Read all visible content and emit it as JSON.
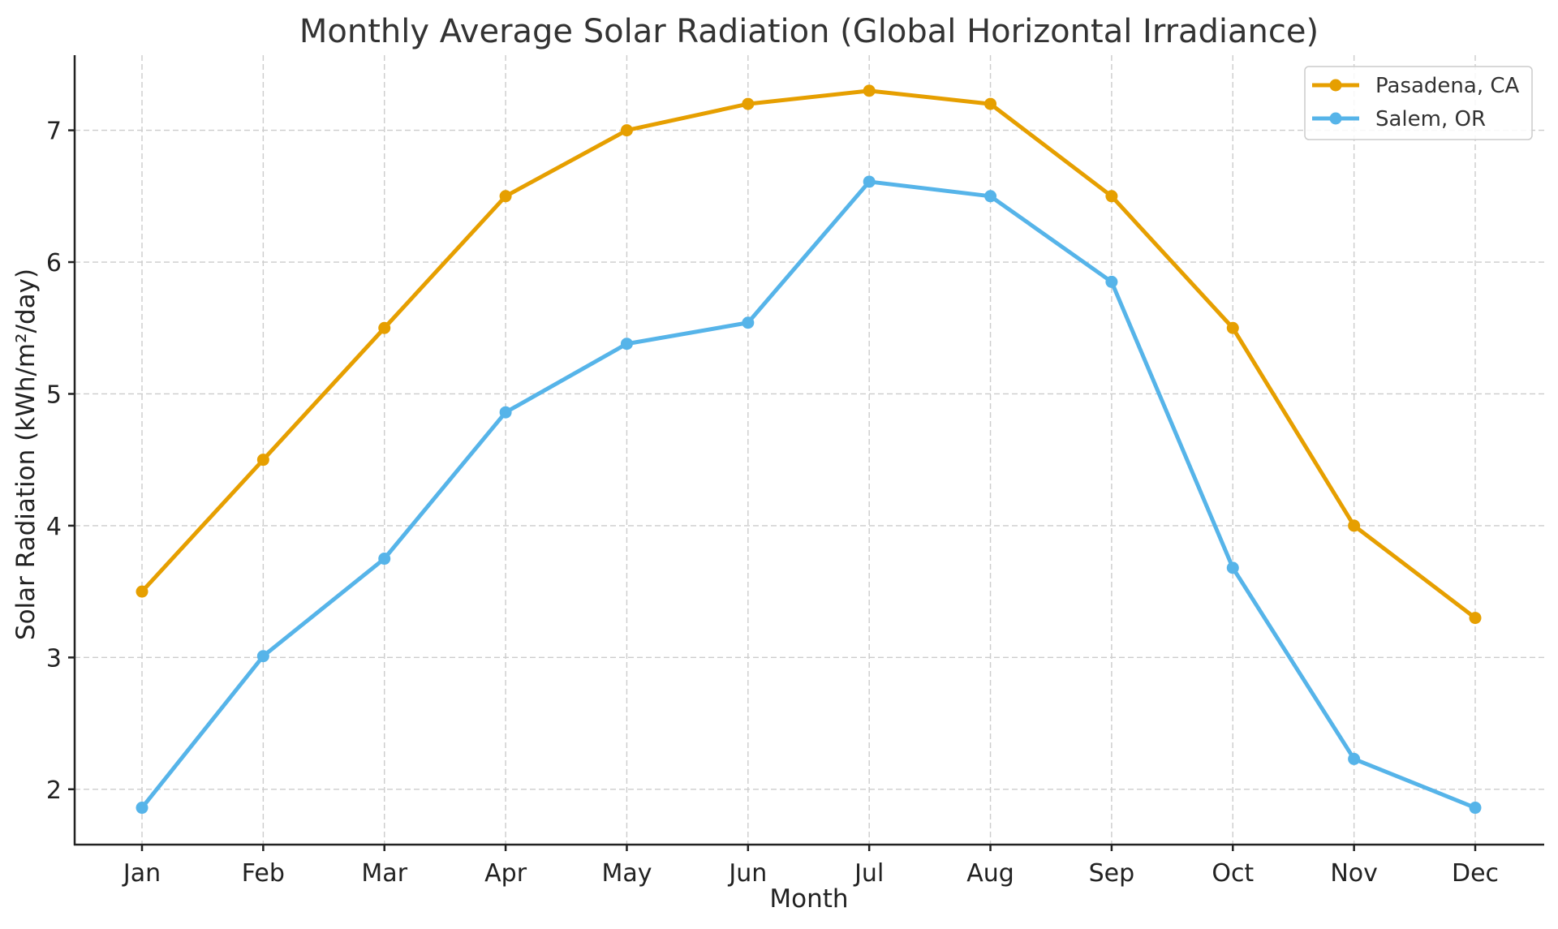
{
  "chart_data": {
    "type": "line",
    "title": "Monthly Average Solar Radiation (Global Horizontal Irradiance)",
    "xlabel": "Month",
    "ylabel": "Solar Radiation (kWh/m²/day)",
    "categories": [
      "Jan",
      "Feb",
      "Mar",
      "Apr",
      "May",
      "Jun",
      "Jul",
      "Aug",
      "Sep",
      "Oct",
      "Nov",
      "Dec"
    ],
    "yticks": [
      2,
      3,
      4,
      5,
      6,
      7
    ],
    "ylim": [
      1.58,
      7.57
    ],
    "grid": true,
    "legend_position": "top-right",
    "series": [
      {
        "name": "Pasadena, CA",
        "color": "#E69F00",
        "marker": "circle",
        "values": [
          3.5,
          4.5,
          5.5,
          6.5,
          7.0,
          7.2,
          7.3,
          7.2,
          6.5,
          5.5,
          4.0,
          3.3
        ]
      },
      {
        "name": "Salem, OR",
        "color": "#56B4E9",
        "marker": "circle",
        "values": [
          1.86,
          3.01,
          3.75,
          4.86,
          5.38,
          5.54,
          6.61,
          6.5,
          5.85,
          3.68,
          2.23,
          1.86
        ]
      }
    ]
  }
}
